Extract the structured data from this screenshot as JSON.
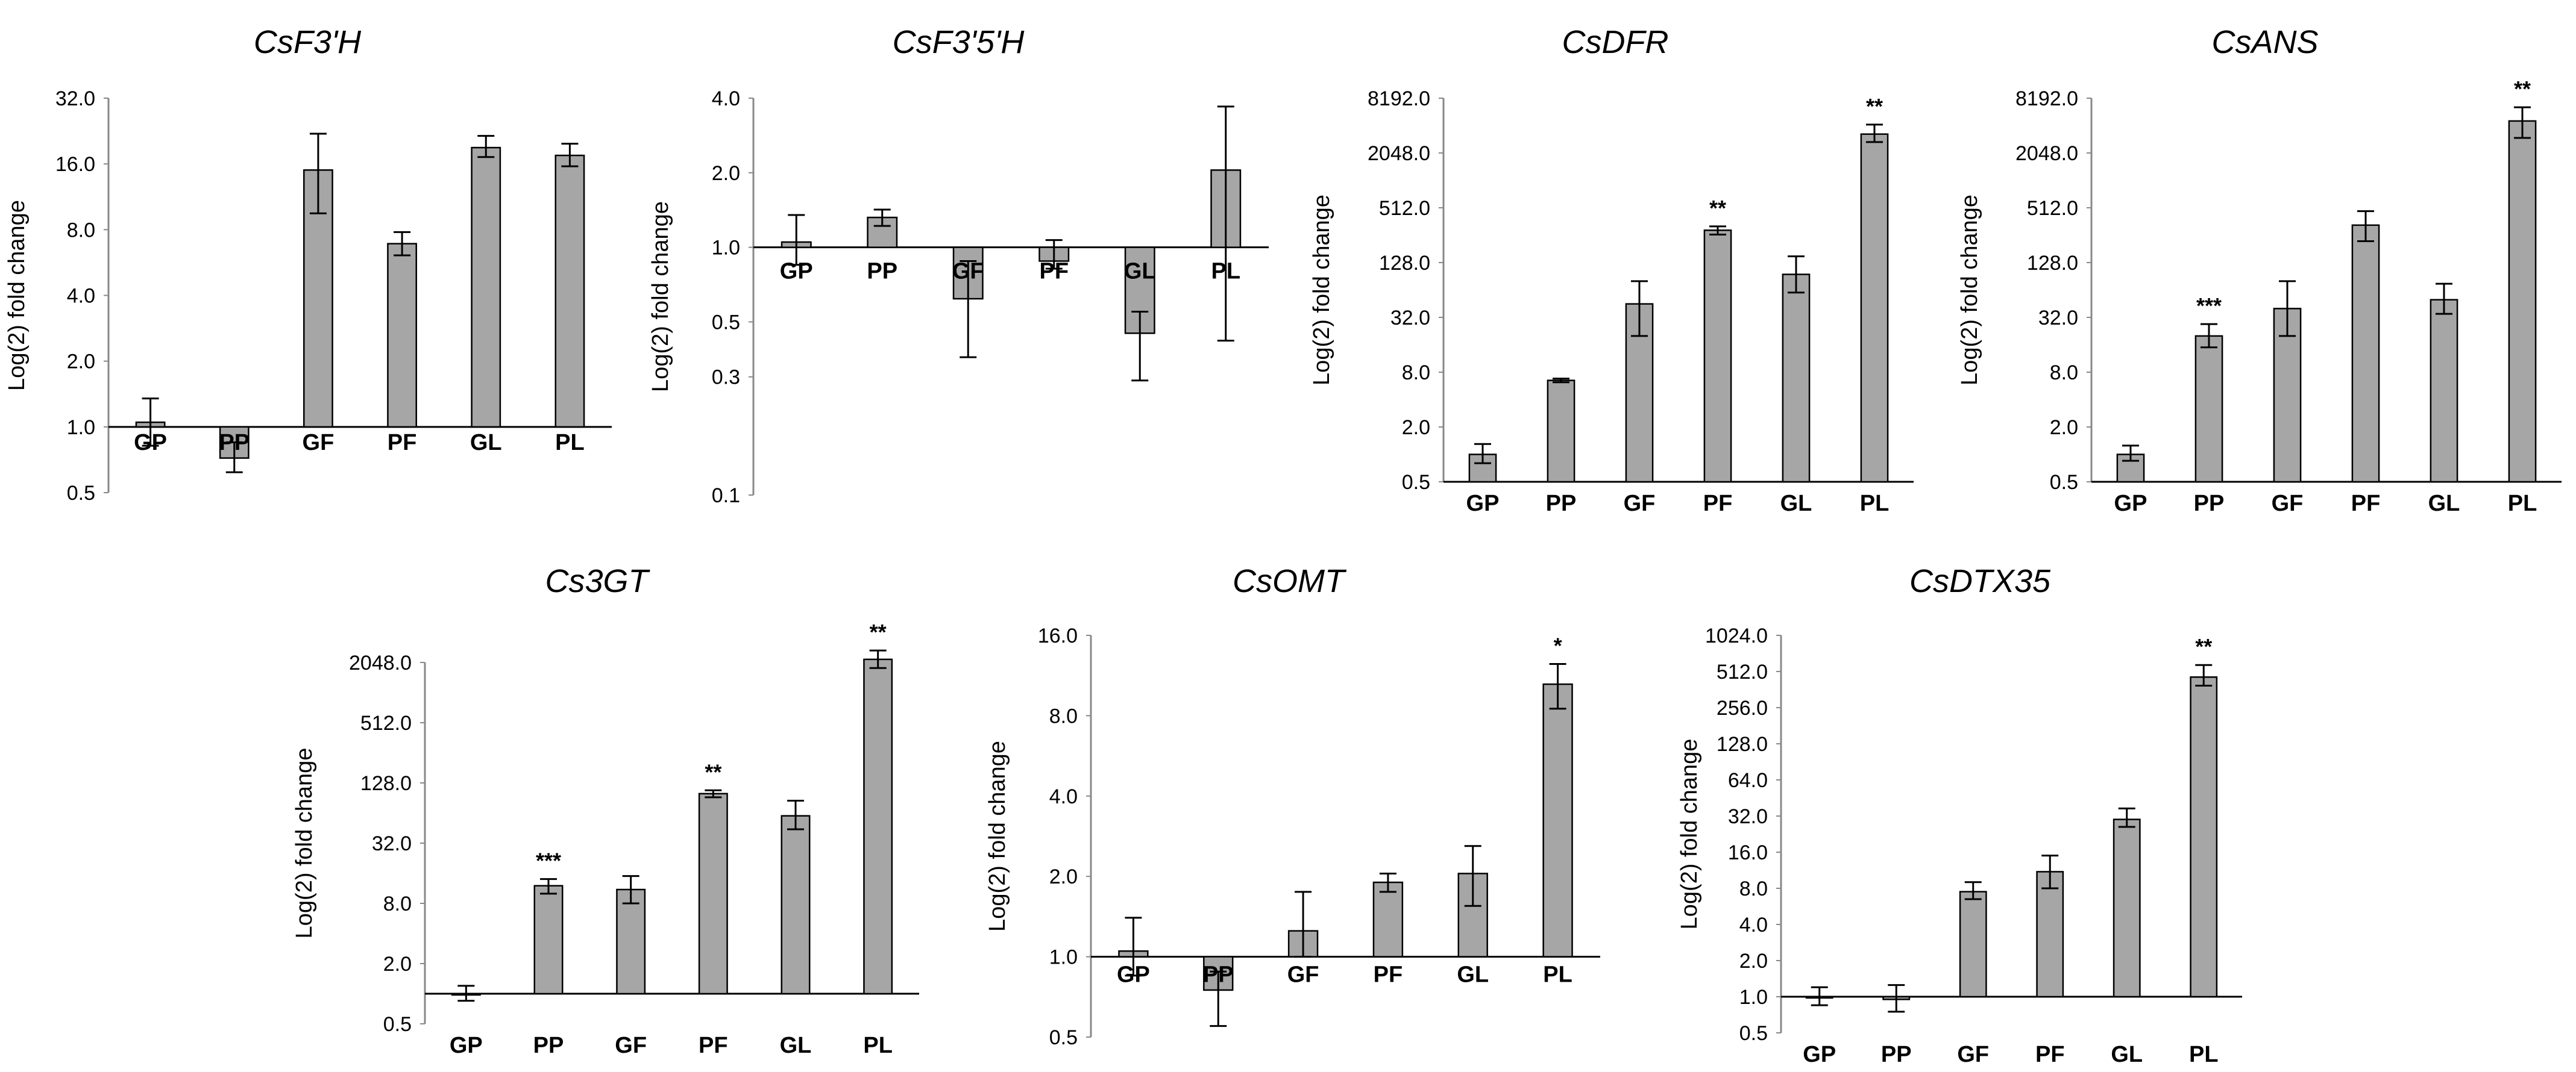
{
  "chart_data": [
    {
      "type": "bar",
      "title": "CsF3'H",
      "ylabel": "Log(2) fold change",
      "yscale": "log2",
      "ylim": [
        0.5,
        32
      ],
      "baseline": 1,
      "yticks": [
        "0.5",
        "1.0",
        "2.0",
        "4.0",
        "8.0",
        "16.0",
        "32.0"
      ],
      "categories": [
        "GP",
        "PP",
        "GF",
        "PF",
        "GL",
        "PL"
      ],
      "values": [
        1.05,
        0.72,
        15.0,
        6.9,
        19.0,
        17.5
      ],
      "err_low": [
        0.82,
        0.62,
        9.5,
        6.1,
        17.2,
        15.6
      ],
      "err_high": [
        1.35,
        0.85,
        22.0,
        7.8,
        21.5,
        19.8
      ],
      "significance": [
        "",
        "",
        "",
        "",
        "",
        ""
      ]
    },
    {
      "type": "bar",
      "title": "CsF3'5'H",
      "ylabel": "Log(2) fold change",
      "yscale": "log2",
      "ylim": [
        0.1,
        4
      ],
      "baseline": 1,
      "yticks": [
        "0.1",
        "0.3",
        "0.5",
        "1.0",
        "2.0",
        "4.0"
      ],
      "categories": [
        "GP",
        "PP",
        "GF",
        "PF",
        "GL",
        "PL"
      ],
      "values": [
        1.05,
        1.32,
        0.62,
        0.88,
        0.45,
        2.05
      ],
      "err_low": [
        0.85,
        1.22,
        0.36,
        0.82,
        0.29,
        0.42
      ],
      "err_high": [
        1.35,
        1.42,
        0.88,
        1.07,
        0.55,
        3.7
      ],
      "significance": [
        "",
        "",
        "",
        "",
        "",
        ""
      ]
    },
    {
      "type": "bar",
      "title": "CsDFR",
      "ylabel": "Log(2) fold change",
      "yscale": "log2",
      "ylim": [
        0.5,
        8192
      ],
      "baseline": 0.5,
      "yticks": [
        "0.5",
        "2.0",
        "8.0",
        "32.0",
        "128.0",
        "512.0",
        "2048.0",
        "8192.0"
      ],
      "categories": [
        "GP",
        "PP",
        "GF",
        "PF",
        "GL",
        "PL"
      ],
      "values": [
        1.0,
        6.5,
        45,
        290,
        95,
        3300
      ],
      "err_low": [
        0.8,
        6.2,
        20,
        260,
        60,
        2700
      ],
      "err_high": [
        1.3,
        6.8,
        80,
        320,
        150,
        4200
      ],
      "significance": [
        "",
        "",
        "",
        "**",
        "",
        "**"
      ]
    },
    {
      "type": "bar",
      "title": "CsANS",
      "ylabel": "Log(2) fold change",
      "yscale": "log2",
      "ylim": [
        0.5,
        8192
      ],
      "baseline": 0.5,
      "yticks": [
        "0.5",
        "2.0",
        "8.0",
        "32.0",
        "128.0",
        "512.0",
        "2048.0",
        "8192.0"
      ],
      "categories": [
        "GP",
        "PP",
        "GF",
        "PF",
        "GL",
        "PL"
      ],
      "values": [
        1.0,
        20,
        40,
        330,
        50,
        4600
      ],
      "err_low": [
        0.85,
        15,
        20,
        220,
        35,
        3000
      ],
      "err_high": [
        1.25,
        27,
        80,
        470,
        75,
        6500
      ],
      "significance": [
        "",
        "***",
        "",
        "",
        "",
        "**"
      ]
    },
    {
      "type": "bar",
      "title": "Cs3GT",
      "ylabel": "Log(2) fold change",
      "yscale": "log2",
      "ylim": [
        0.5,
        2048
      ],
      "baseline": 1,
      "yticks": [
        "0.5",
        "2.0",
        "8.0",
        "32.0",
        "128.0",
        "512.0",
        "2048.0"
      ],
      "categories": [
        "GP",
        "PP",
        "GF",
        "PF",
        "GL",
        "PL"
      ],
      "values": [
        1.0,
        12,
        11,
        100,
        60,
        2200
      ],
      "err_low": [
        0.85,
        10,
        8,
        92,
        44,
        1800
      ],
      "err_high": [
        1.2,
        14,
        15,
        108,
        85,
        2700
      ],
      "significance": [
        "",
        "***",
        "",
        "**",
        "",
        "**"
      ]
    },
    {
      "type": "bar",
      "title": "CsOMT",
      "ylabel": "Log(2) fold change",
      "yscale": "log2",
      "ylim": [
        0.5,
        16
      ],
      "baseline": 1,
      "yticks": [
        "0.5",
        "1.0",
        "2.0",
        "4.0",
        "8.0",
        "16.0"
      ],
      "categories": [
        "GP",
        "PP",
        "GF",
        "PF",
        "GL",
        "PL"
      ],
      "values": [
        1.05,
        0.75,
        1.25,
        1.9,
        2.05,
        10.5
      ],
      "err_low": [
        0.85,
        0.55,
        1.0,
        1.75,
        1.55,
        8.5
      ],
      "err_high": [
        1.4,
        0.88,
        1.75,
        2.05,
        2.6,
        12.5
      ],
      "significance": [
        "",
        "",
        "",
        "",
        "",
        "*"
      ]
    },
    {
      "type": "bar",
      "title": "CsDTX35",
      "ylabel": "Log(2) fold change",
      "yscale": "log2",
      "ylim": [
        0.5,
        1024
      ],
      "baseline": 1,
      "yticks": [
        "0.5",
        "1.0",
        "2.0",
        "4.0",
        "8.0",
        "16.0",
        "32.0",
        "64.0",
        "128.0",
        "256.0",
        "512.0",
        "1024.0"
      ],
      "categories": [
        "GP",
        "PP",
        "GF",
        "PF",
        "GL",
        "PL"
      ],
      "values": [
        1.0,
        0.95,
        7.5,
        11,
        30,
        460
      ],
      "err_low": [
        0.85,
        0.75,
        6.5,
        8,
        26,
        390
      ],
      "err_high": [
        1.2,
        1.25,
        9,
        15,
        37,
        580
      ],
      "significance": [
        "",
        "",
        "",
        "",
        "",
        "**"
      ]
    }
  ]
}
